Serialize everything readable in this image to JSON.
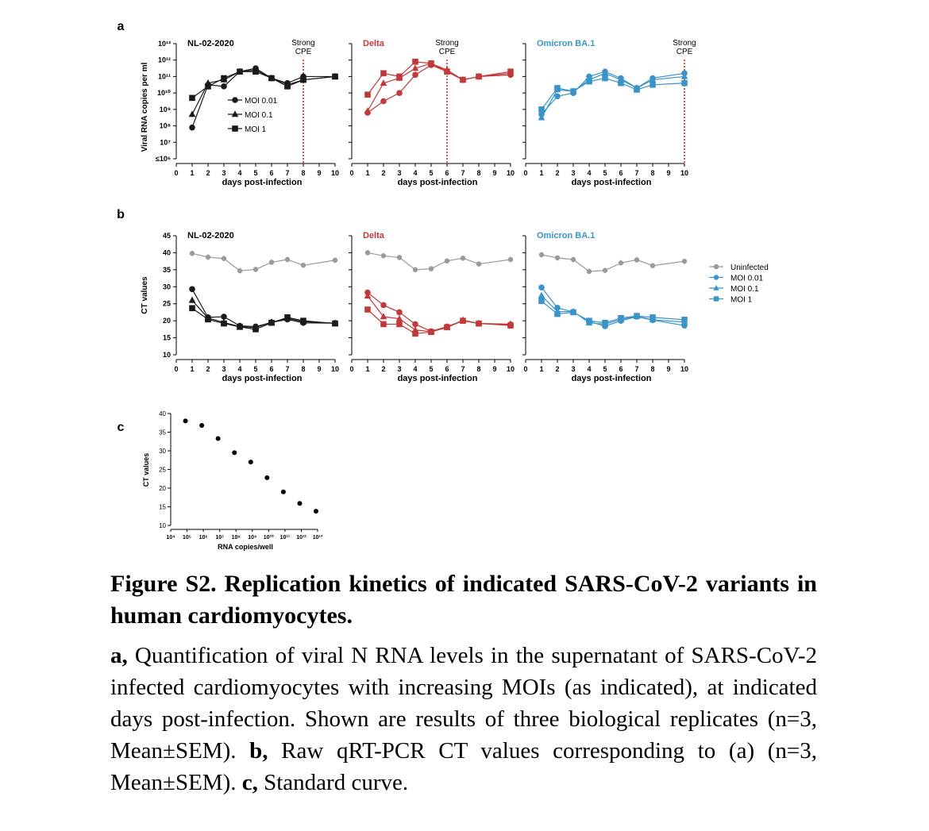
{
  "figure": {
    "panel_labels": {
      "a": "a",
      "b": "b",
      "c": "c"
    },
    "cpe_label_line1": "Strong",
    "cpe_label_line2": "CPE"
  },
  "caption": {
    "title": "Figure S2. Replication kinetics of indicated SARS-CoV-2 variants in human cardiomyocytes.",
    "a_label": "a,",
    "a_text": " Quantification of viral N RNA levels in the supernatant of SARS-CoV-2 infected cardiomyocytes with increasing MOIs (as indicated), at indicated days post-infection. Shown are results of three biological replicates (n=3, Mean±SEM). ",
    "b_label": "b,",
    "b_text": " Raw qRT-PCR CT values corresponding to (a) (n=3, Mean±SEM). ",
    "c_label": "c,",
    "c_text": " Standard curve."
  },
  "chart_data": [
    {
      "panel": "a",
      "type": "line",
      "ylabel": "Viral RNA copies per ml",
      "xlabel": "days post-infection",
      "yscale": "log10",
      "ylim": [
        6,
        13
      ],
      "y_ticks": [
        "≤10⁶",
        "10⁷",
        "10⁸",
        "10⁹",
        "10¹⁰",
        "10¹¹",
        "10¹²",
        "10¹³"
      ],
      "xlim": [
        0,
        10
      ],
      "x_ticks": [
        "0",
        "1",
        "2",
        "3",
        "4",
        "5",
        "6",
        "7",
        "8",
        "9",
        "10"
      ],
      "legend": [
        "MOI 0.01",
        "MOI 0.1",
        "MOI 1"
      ],
      "subplots": [
        {
          "title": "NL-02-2020",
          "color": "#1a1a1a",
          "cpe_day": 8,
          "series": [
            {
              "name": "MOI 0.01",
              "marker": "circle",
              "x": [
                1,
                2,
                3,
                4,
                5,
                6,
                7,
                8,
                10
              ],
              "log_values": [
                7.9,
                10.5,
                10.4,
                11.3,
                11.5,
                10.9,
                10.6,
                11.0,
                11.0
              ]
            },
            {
              "name": "MOI 0.1",
              "marker": "triangle",
              "x": [
                1,
                2,
                3,
                4,
                5,
                6,
                7,
                8,
                10
              ],
              "log_values": [
                8.7,
                10.6,
                10.8,
                11.3,
                11.4,
                10.9,
                10.5,
                10.8,
                11.0
              ]
            },
            {
              "name": "MOI 1",
              "marker": "square",
              "x": [
                1,
                2,
                3,
                4,
                5,
                6,
                7,
                8,
                10
              ],
              "log_values": [
                9.7,
                10.4,
                10.9,
                11.3,
                11.3,
                10.9,
                10.4,
                10.8,
                11.0
              ]
            }
          ]
        },
        {
          "title": "Delta",
          "color": "#c0393b",
          "cpe_day": 6,
          "series": [
            {
              "name": "MOI 0.01",
              "marker": "circle",
              "x": [
                1,
                2,
                3,
                4,
                5,
                6,
                7,
                8,
                10
              ],
              "log_values": [
                8.8,
                9.5,
                10.0,
                11.1,
                11.7,
                11.3,
                10.8,
                11.0,
                11.1
              ]
            },
            {
              "name": "MOI 0.1",
              "marker": "triangle",
              "x": [
                1,
                2,
                3,
                4,
                5,
                6,
                7,
                8,
                10
              ],
              "log_values": [
                8.9,
                10.6,
                10.9,
                11.5,
                11.8,
                11.4,
                10.8,
                11.0,
                11.2
              ]
            },
            {
              "name": "MOI 1",
              "marker": "square",
              "x": [
                1,
                2,
                3,
                4,
                5,
                6,
                7,
                8,
                10
              ],
              "log_values": [
                9.9,
                11.2,
                11.0,
                11.9,
                11.8,
                11.3,
                10.8,
                11.0,
                11.3
              ]
            }
          ]
        },
        {
          "title": "Omicron BA.1",
          "color": "#3a94c8",
          "cpe_day": 10,
          "series": [
            {
              "name": "MOI 0.01",
              "marker": "circle",
              "x": [
                1,
                2,
                3,
                4,
                5,
                6,
                7,
                8,
                10
              ],
              "log_values": [
                8.7,
                9.8,
                10.0,
                11.0,
                11.3,
                10.9,
                10.3,
                10.9,
                11.2
              ]
            },
            {
              "name": "MOI 0.1",
              "marker": "triangle",
              "x": [
                1,
                2,
                3,
                4,
                5,
                6,
                7,
                8,
                10
              ],
              "log_values": [
                8.5,
                10.2,
                10.1,
                10.8,
                11.2,
                10.8,
                10.3,
                10.8,
                11.0
              ]
            },
            {
              "name": "MOI 1",
              "marker": "square",
              "x": [
                1,
                2,
                3,
                4,
                5,
                6,
                7,
                8,
                10
              ],
              "log_values": [
                9.0,
                10.3,
                10.1,
                10.7,
                10.9,
                10.6,
                10.2,
                10.5,
                10.6
              ]
            }
          ]
        }
      ]
    },
    {
      "panel": "b",
      "type": "line",
      "ylabel": "CT values",
      "xlabel": "days post-infection",
      "ylim": [
        10,
        45
      ],
      "y_ticks": [
        10,
        15,
        20,
        25,
        30,
        35,
        40,
        45
      ],
      "xlim": [
        0,
        10
      ],
      "x_ticks": [
        "0",
        "1",
        "2",
        "3",
        "4",
        "5",
        "6",
        "7",
        "8",
        "9",
        "10"
      ],
      "legend": [
        "Uninfected",
        "MOI 0.01",
        "MOI 0.1",
        "MOI 1"
      ],
      "subplots": [
        {
          "title": "NL-02-2020",
          "color": "#1a1a1a",
          "series": [
            {
              "name": "Uninfected",
              "marker": "circle",
              "x": [
                1,
                2,
                3,
                4,
                5,
                6,
                7,
                8,
                10
              ],
              "values": [
                39.8,
                38.7,
                38.3,
                34.7,
                35.1,
                37.2,
                38.0,
                36.3,
                37.8
              ]
            },
            {
              "name": "MOI 0.01",
              "marker": "circle",
              "x": [
                1,
                2,
                3,
                4,
                5,
                6,
                7,
                8,
                10
              ],
              "values": [
                29.3,
                21.0,
                21.2,
                18.5,
                18.3,
                19.5,
                20.4,
                19.4,
                19.3
              ]
            },
            {
              "name": "MOI 0.1",
              "marker": "triangle",
              "x": [
                1,
                2,
                3,
                4,
                5,
                6,
                7,
                8,
                10
              ],
              "values": [
                26.0,
                20.8,
                19.5,
                18.3,
                18.0,
                19.6,
                20.7,
                19.7,
                19.3
              ]
            },
            {
              "name": "MOI 1",
              "marker": "square",
              "x": [
                1,
                2,
                3,
                4,
                5,
                6,
                7,
                8,
                10
              ],
              "values": [
                23.7,
                20.4,
                19.2,
                18.2,
                17.5,
                19.4,
                21.0,
                20.0,
                19.2
              ]
            }
          ]
        },
        {
          "title": "Delta",
          "color": "#c0393b",
          "series": [
            {
              "name": "Uninfected",
              "marker": "circle",
              "x": [
                1,
                2,
                3,
                4,
                5,
                6,
                7,
                8,
                10
              ],
              "values": [
                40.0,
                39.1,
                38.6,
                35.0,
                35.3,
                37.6,
                38.4,
                36.7,
                38.0
              ]
            },
            {
              "name": "MOI 0.01",
              "marker": "circle",
              "x": [
                1,
                2,
                3,
                4,
                5,
                6,
                7,
                8,
                10
              ],
              "values": [
                28.3,
                24.6,
                22.5,
                19.0,
                16.9,
                18.3,
                20.0,
                19.2,
                18.9
              ]
            },
            {
              "name": "MOI 0.1",
              "marker": "triangle",
              "x": [
                1,
                2,
                3,
                4,
                5,
                6,
                7,
                8,
                10
              ],
              "values": [
                27.3,
                21.2,
                20.6,
                17.3,
                16.8,
                18.0,
                20.2,
                19.2,
                19.0
              ]
            },
            {
              "name": "MOI 1",
              "marker": "square",
              "x": [
                1,
                2,
                3,
                4,
                5,
                6,
                7,
                8,
                10
              ],
              "values": [
                23.3,
                19.0,
                19.0,
                16.2,
                16.7,
                18.1,
                20.0,
                19.2,
                18.6
              ]
            }
          ]
        },
        {
          "title": "Omicron BA.1",
          "color": "#3a94c8",
          "series": [
            {
              "name": "Uninfected",
              "marker": "circle",
              "x": [
                1,
                2,
                3,
                4,
                5,
                6,
                7,
                8,
                10
              ],
              "values": [
                39.4,
                38.5,
                38.0,
                34.5,
                34.8,
                37.0,
                37.9,
                36.2,
                37.5
              ]
            },
            {
              "name": "MOI 0.01",
              "marker": "circle",
              "x": [
                1,
                2,
                3,
                4,
                5,
                6,
                7,
                8,
                10
              ],
              "values": [
                29.8,
                23.8,
                22.6,
                19.8,
                18.4,
                20.0,
                21.2,
                20.2,
                18.6
              ]
            },
            {
              "name": "MOI 0.1",
              "marker": "triangle",
              "x": [
                1,
                2,
                3,
                4,
                5,
                6,
                7,
                8,
                10
              ],
              "values": [
                27.4,
                22.7,
                22.7,
                19.4,
                19.0,
                20.4,
                21.3,
                20.3,
                19.6
              ]
            },
            {
              "name": "MOI 1",
              "marker": "square",
              "x": [
                1,
                2,
                3,
                4,
                5,
                6,
                7,
                8,
                10
              ],
              "values": [
                25.8,
                22.0,
                22.5,
                20.0,
                19.4,
                20.8,
                21.4,
                21.0,
                20.3
              ]
            }
          ]
        }
      ]
    },
    {
      "panel": "c",
      "type": "scatter",
      "title": "",
      "ylabel": "CT values",
      "xlabel": "RNA copies/well",
      "xscale": "log10",
      "xlim": [
        4,
        13
      ],
      "x_ticks": [
        "10⁴",
        "10⁵",
        "10⁶",
        "10⁷",
        "10⁸",
        "10⁹",
        "10¹⁰",
        "10¹¹",
        "10¹²",
        "10¹³"
      ],
      "ylim": [
        10,
        40
      ],
      "y_ticks": [
        10,
        15,
        20,
        25,
        30,
        35,
        40
      ],
      "series": [
        {
          "name": "Standard curve",
          "log_x": [
            5,
            6,
            7,
            8,
            9,
            10,
            11,
            12,
            13
          ],
          "values": [
            38.0,
            36.8,
            33.3,
            29.5,
            27.0,
            22.8,
            19.0,
            15.9,
            13.8
          ]
        }
      ]
    }
  ]
}
